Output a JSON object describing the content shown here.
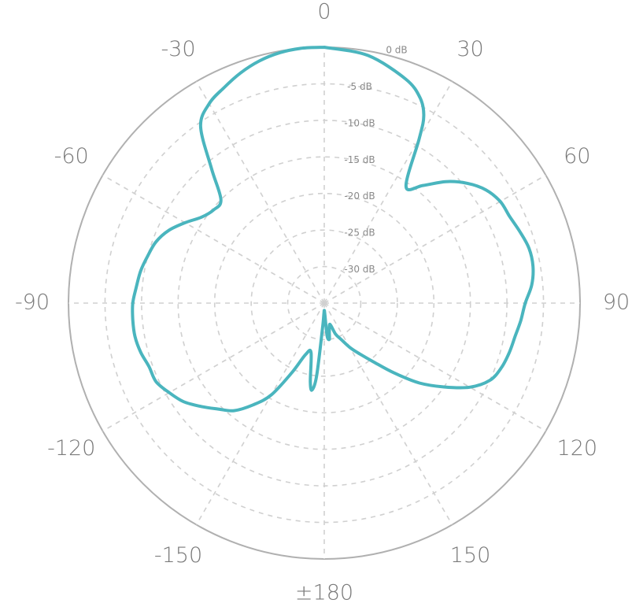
{
  "chart_data": {
    "type": "polar-line",
    "title": "",
    "angle_unit": "degrees",
    "radial_unit": "dB",
    "radial_range": [
      -35,
      0
    ],
    "grid": true,
    "angle_ticks": [
      "0",
      "30",
      "60",
      "90",
      "120",
      "150",
      "±180",
      "-150",
      "-120",
      "-90",
      "-60",
      "-30"
    ],
    "radial_ticks": [
      {
        "value": 0,
        "label": "0 dB"
      },
      {
        "value": -5,
        "label": "-5 dB"
      },
      {
        "value": -10,
        "label": "-10 dB"
      },
      {
        "value": -15,
        "label": "-15 dB"
      },
      {
        "value": -20,
        "label": "-20 dB"
      },
      {
        "value": -25,
        "label": "-25 dB"
      },
      {
        "value": -30,
        "label": "-30 dB"
      }
    ],
    "series": [
      {
        "color": "#4ab5be",
        "angles": [
          0,
          10,
          20,
          25,
          28,
          30,
          35,
          40,
          45,
          50,
          55,
          60,
          65,
          70,
          75,
          80,
          85,
          90,
          95,
          100,
          105,
          110,
          115,
          120,
          125,
          130,
          135,
          140,
          145,
          150,
          155,
          160,
          165,
          170,
          172,
          175,
          177,
          180,
          -178,
          -176,
          -174,
          -172,
          -170,
          -165,
          -160,
          -155,
          -150,
          -145,
          -140,
          -135,
          -130,
          -125,
          -120,
          -115,
          -110,
          -105,
          -100,
          -95,
          -90,
          -85,
          -80,
          -75,
          -70,
          -65,
          -60,
          -55,
          -50,
          -45,
          -40,
          -35,
          -30,
          -25,
          -20,
          -15,
          -10,
          -5,
          0
        ],
        "values": [
          0.0,
          -0.6,
          -2.4,
          -4.0,
          -6.0,
          -9.0,
          -15.5,
          -14.0,
          -11.5,
          -9.5,
          -8.0,
          -7.2,
          -7.0,
          -6.5,
          -6.0,
          -6.0,
          -6.5,
          -7.5,
          -8.0,
          -8.5,
          -8.8,
          -9.2,
          -10.0,
          -12.0,
          -15.0,
          -18.0,
          -21.5,
          -24.5,
          -26.5,
          -28.0,
          -29.5,
          -30.5,
          -32.0,
          -31.0,
          -30.0,
          -30.5,
          -33.5,
          -34.0,
          -33.5,
          -31.5,
          -25.0,
          -23.0,
          -24.0,
          -28.0,
          -27.5,
          -24.5,
          -20.5,
          -18.0,
          -15.8,
          -14.5,
          -13.0,
          -11.5,
          -10.5,
          -9.6,
          -9.5,
          -9.0,
          -8.7,
          -8.7,
          -8.8,
          -9.2,
          -9.5,
          -10.0,
          -10.5,
          -11.5,
          -13.0,
          -14.5,
          -15.2,
          -15.0,
          -11.0,
          -5.5,
          -3.5,
          -2.5,
          -1.5,
          -0.7,
          -0.2,
          0.0,
          0.0
        ]
      }
    ]
  }
}
